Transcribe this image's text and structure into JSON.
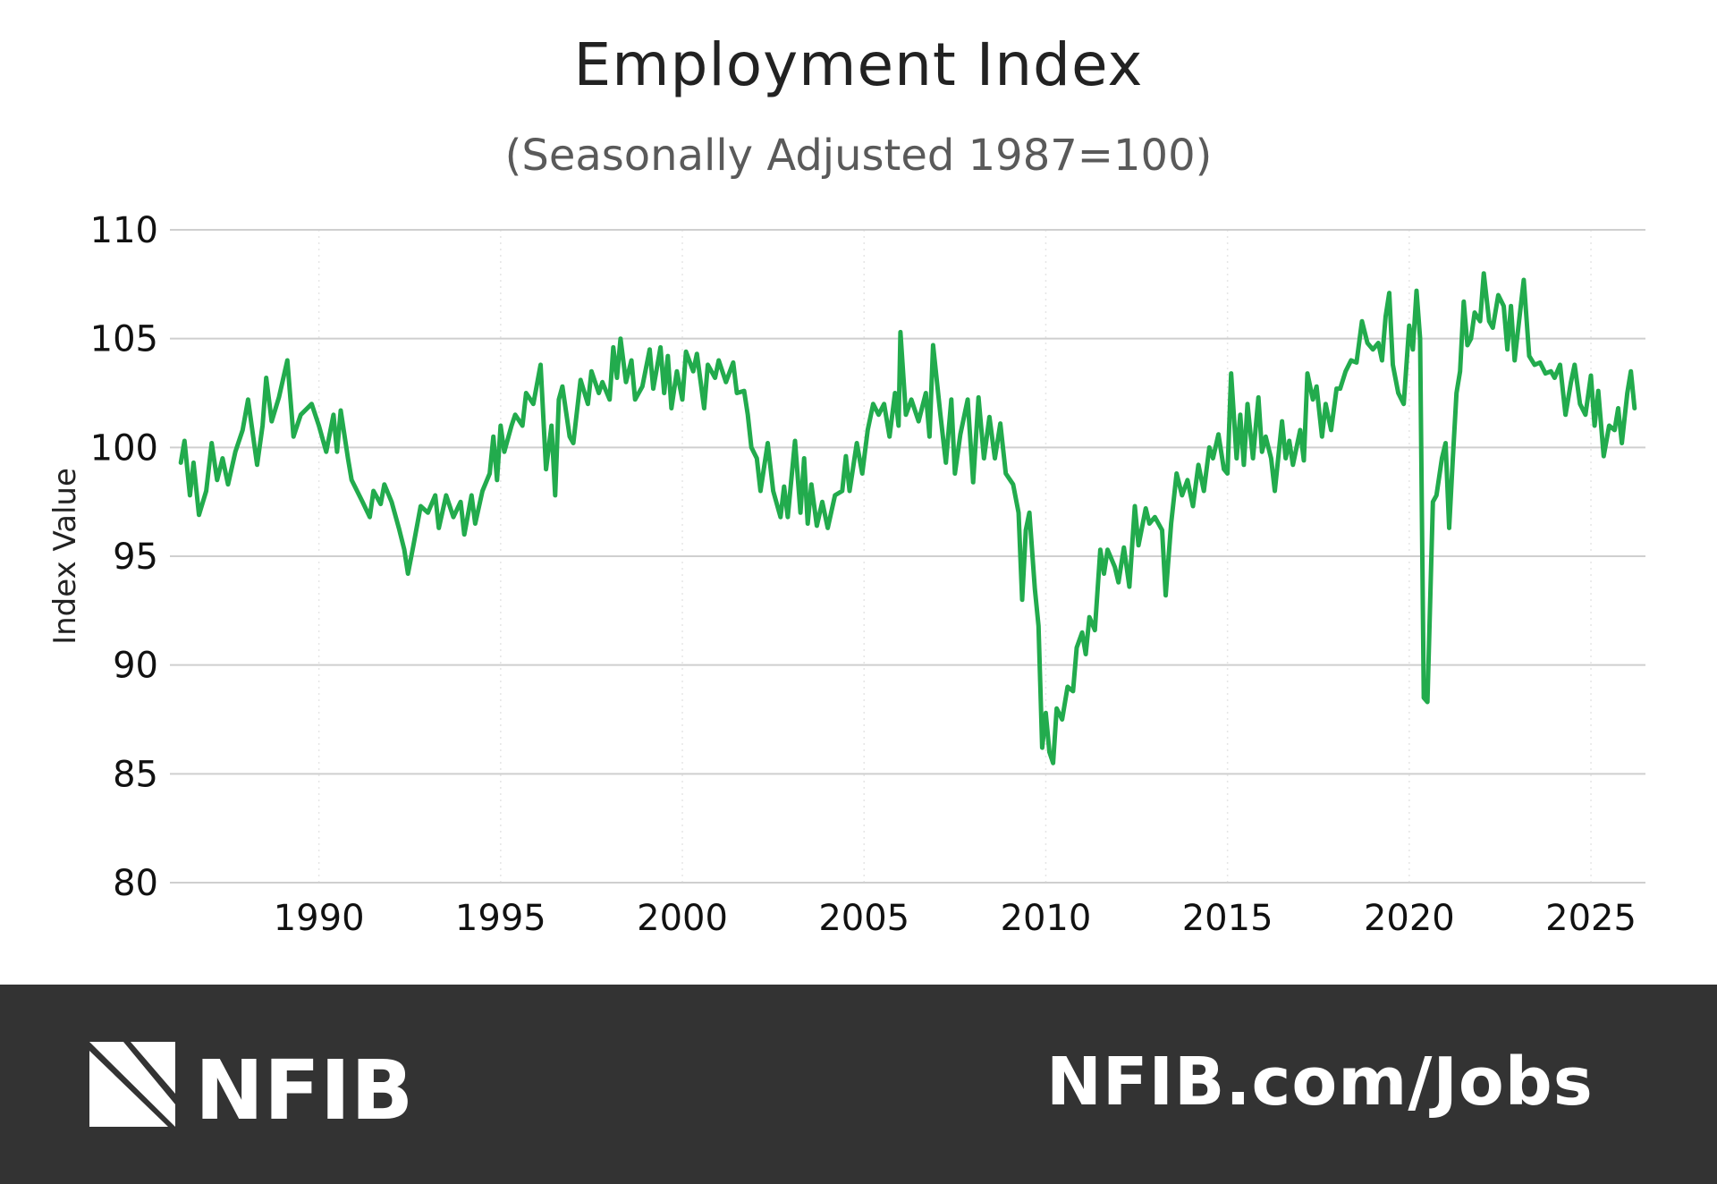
{
  "chart_data": {
    "type": "line",
    "title": "Employment Index",
    "subtitle": "(Seasonally Adjusted 1987=100)",
    "xlabel": "",
    "ylabel": "Index Value",
    "ylim": [
      80,
      110
    ],
    "yticks": [
      80,
      85,
      90,
      95,
      100,
      105,
      110
    ],
    "xlim": [
      1985.9,
      2026.5
    ],
    "xticks": [
      1990,
      1995,
      2000,
      2005,
      2010,
      2015,
      2020,
      2025
    ],
    "grid": {
      "horizontal": true,
      "vertical": "dotted"
    },
    "line_color": "#22ab4d",
    "series": [
      {
        "x": [
          1986.2,
          1986.3,
          1986.45,
          1986.55,
          1986.7,
          1986.9,
          1987.05,
          1987.2,
          1987.35,
          1987.5,
          1987.7,
          1987.9,
          1988.05,
          1988.3,
          1988.45,
          1988.55,
          1988.7,
          1988.9,
          1989.13,
          1989.3,
          1989.5,
          1989.8,
          1990.0,
          1990.2,
          1990.4,
          1990.5,
          1990.6,
          1990.8,
          1990.9,
          1991.2,
          1991.4,
          1991.5,
          1991.7,
          1991.8,
          1992.0,
          1992.2,
          1992.35,
          1992.45,
          1992.6,
          1992.8,
          1993.0,
          1993.2,
          1993.3,
          1993.5,
          1993.7,
          1993.9,
          1994.0,
          1994.2,
          1994.3,
          1994.5,
          1994.7,
          1994.8,
          1994.9,
          1995.0,
          1995.1,
          1995.3,
          1995.4,
          1995.6,
          1995.7,
          1995.9,
          1996.1,
          1996.25,
          1996.4,
          1996.5,
          1996.6,
          1996.7,
          1996.9,
          1997.0,
          1997.2,
          1997.4,
          1997.5,
          1997.7,
          1997.8,
          1998.0,
          1998.1,
          1998.2,
          1998.3,
          1998.45,
          1998.6,
          1998.7,
          1998.9,
          1999.1,
          1999.2,
          1999.4,
          1999.5,
          1999.6,
          1999.7,
          1999.85,
          2000.0,
          2000.1,
          2000.3,
          2000.4,
          2000.6,
          2000.7,
          2000.9,
          2001.0,
          2001.2,
          2001.4,
          2001.5,
          2001.7,
          2001.8,
          2001.9,
          2002.05,
          2002.15,
          2002.35,
          2002.5,
          2002.7,
          2002.8,
          2002.9,
          2003.1,
          2003.25,
          2003.35,
          2003.45,
          2003.55,
          2003.7,
          2003.85,
          2004.0,
          2004.2,
          2004.4,
          2004.5,
          2004.6,
          2004.8,
          2004.95,
          2005.1,
          2005.25,
          2005.4,
          2005.55,
          2005.7,
          2005.85,
          2005.95,
          2006.0,
          2006.15,
          2006.3,
          2006.5,
          2006.7,
          2006.8,
          2006.9,
          2007.1,
          2007.25,
          2007.4,
          2007.5,
          2007.65,
          2007.85,
          2008.0,
          2008.15,
          2008.3,
          2008.45,
          2008.6,
          2008.75,
          2008.9,
          2009.1,
          2009.25,
          2009.35,
          2009.45,
          2009.55,
          2009.7,
          2009.8,
          2009.9,
          2010.0,
          2010.1,
          2010.2,
          2010.3,
          2010.45,
          2010.6,
          2010.75,
          2010.85,
          2011.0,
          2011.1,
          2011.2,
          2011.35,
          2011.5,
          2011.6,
          2011.7,
          2011.9,
          2012.0,
          2012.15,
          2012.3,
          2012.45,
          2012.55,
          2012.75,
          2012.85,
          2013.0,
          2013.2,
          2013.3,
          2013.45,
          2013.6,
          2013.75,
          2013.9,
          2014.05,
          2014.2,
          2014.35,
          2014.5,
          2014.6,
          2014.75,
          2014.9,
          2015.0,
          2015.1,
          2015.25,
          2015.35,
          2015.45,
          2015.55,
          2015.7,
          2015.85,
          2015.95,
          2016.05,
          2016.2,
          2016.3,
          2016.5,
          2016.6,
          2016.7,
          2016.8,
          2017.0,
          2017.1,
          2017.2,
          2017.35,
          2017.45,
          2017.6,
          2017.7,
          2017.85,
          2018.0,
          2018.1,
          2018.25,
          2018.4,
          2018.55,
          2018.7,
          2018.85,
          2019.0,
          2019.15,
          2019.25,
          2019.35,
          2019.45,
          2019.55,
          2019.7,
          2019.85,
          2020.0,
          2020.1,
          2020.2,
          2020.3,
          2020.4,
          2020.5,
          2020.65,
          2020.75,
          2020.9,
          2021.0,
          2021.1,
          2021.2,
          2021.3,
          2021.4,
          2021.5,
          2021.6,
          2021.7,
          2021.8,
          2021.95,
          2022.05,
          2022.2,
          2022.3,
          2022.45,
          2022.6,
          2022.7,
          2022.8,
          2022.9,
          2023.0,
          2023.15,
          2023.3,
          2023.45,
          2023.6,
          2023.75,
          2023.9,
          2024.0,
          2024.15,
          2024.3,
          2024.45,
          2024.55,
          2024.7,
          2024.85,
          2025.0,
          2025.1,
          2025.2,
          2025.35,
          2025.5,
          2025.65,
          2025.75,
          2025.85,
          2026.0,
          2026.1,
          2026.2
        ],
        "y": [
          99.3,
          100.3,
          97.8,
          99.3,
          96.9,
          98.0,
          100.2,
          98.5,
          99.5,
          98.3,
          99.8,
          100.8,
          102.2,
          99.2,
          101.0,
          103.2,
          101.2,
          102.3,
          104.0,
          100.5,
          101.5,
          102.0,
          101.0,
          99.8,
          101.5,
          99.8,
          101.7,
          99.5,
          98.5,
          97.5,
          96.8,
          98.0,
          97.4,
          98.3,
          97.5,
          96.3,
          95.3,
          94.2,
          95.5,
          97.3,
          97.0,
          97.8,
          96.3,
          97.8,
          96.8,
          97.5,
          96.0,
          97.8,
          96.5,
          98.0,
          98.8,
          100.5,
          98.5,
          101.0,
          99.8,
          101.0,
          101.5,
          101.0,
          102.5,
          102.0,
          103.8,
          99.0,
          101.0,
          97.8,
          102.2,
          102.8,
          100.5,
          100.2,
          103.1,
          102.0,
          103.5,
          102.5,
          103.0,
          102.2,
          104.6,
          103.2,
          105.0,
          103.0,
          104.0,
          102.2,
          102.8,
          104.5,
          102.7,
          104.6,
          102.5,
          104.2,
          101.8,
          103.5,
          102.2,
          104.4,
          103.5,
          104.3,
          101.8,
          103.8,
          103.2,
          104.0,
          103.0,
          103.9,
          102.5,
          102.6,
          101.5,
          100.0,
          99.5,
          98.0,
          100.2,
          98.0,
          96.8,
          98.2,
          96.8,
          100.3,
          97.0,
          99.5,
          96.5,
          98.3,
          96.4,
          97.5,
          96.3,
          97.8,
          98.0,
          99.6,
          98.0,
          100.2,
          98.8,
          100.8,
          102.0,
          101.5,
          102.0,
          100.5,
          102.5,
          101.0,
          105.3,
          101.5,
          102.2,
          101.2,
          102.5,
          100.5,
          104.7,
          101.5,
          99.3,
          102.2,
          98.8,
          100.6,
          102.2,
          98.4,
          102.3,
          99.5,
          101.4,
          99.5,
          101.1,
          98.8,
          98.3,
          97.0,
          93.0,
          96.2,
          97.0,
          93.5,
          91.8,
          86.2,
          87.8,
          86.0,
          85.5,
          88.0,
          87.5,
          89.0,
          88.8,
          90.8,
          91.5,
          90.5,
          92.2,
          91.6,
          95.3,
          94.2,
          95.3,
          94.5,
          93.8,
          95.4,
          93.6,
          97.3,
          95.5,
          97.2,
          96.5,
          96.8,
          96.2,
          93.2,
          96.5,
          98.8,
          97.8,
          98.5,
          97.3,
          99.2,
          98.0,
          100.0,
          99.5,
          100.6,
          99.0,
          98.8,
          103.4,
          99.5,
          101.5,
          99.2,
          102.0,
          99.5,
          102.3,
          99.8,
          100.5,
          99.5,
          98.0,
          101.2,
          99.5,
          100.3,
          99.2,
          100.8,
          99.4,
          103.4,
          102.2,
          102.8,
          100.5,
          102.0,
          100.8,
          102.7,
          102.7,
          103.5,
          104.0,
          103.9,
          105.8,
          104.8,
          104.5,
          104.8,
          104.0,
          106.0,
          107.1,
          103.8,
          102.5,
          102.0,
          105.6,
          104.5,
          107.2,
          105.0,
          88.5,
          88.3,
          97.5,
          97.8,
          99.5,
          100.2,
          96.3,
          99.5,
          102.5,
          103.5,
          106.7,
          104.7,
          105.0,
          106.2,
          105.8,
          108.0,
          105.8,
          105.5,
          107.0,
          106.5,
          104.5,
          106.5,
          104.0,
          105.5,
          107.7,
          104.2,
          103.8,
          103.9,
          103.4,
          103.5,
          103.2,
          103.8,
          101.5,
          103.0,
          103.8,
          102.0,
          101.5,
          103.3,
          101.0,
          102.6,
          99.6,
          101.0,
          100.8,
          101.8,
          100.2,
          102.5,
          103.5,
          101.8
        ]
      }
    ]
  },
  "footer": {
    "brand": "NFIB",
    "url": "NFIB.com/Jobs",
    "background": "#333333"
  }
}
